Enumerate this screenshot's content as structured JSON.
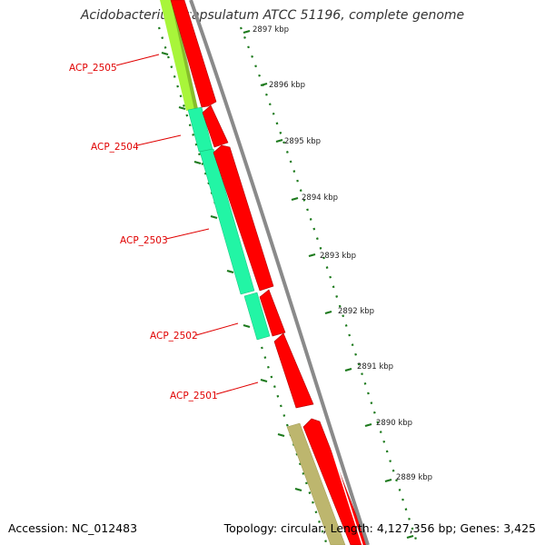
{
  "map": {
    "title": "Acidobacterium capsulatum ATCC 51196, complete genome",
    "accession": "Accession: NC_012483",
    "summary": "Topology: circular; Length: 4,127,356 bp; Genes: 3,425",
    "colors": {
      "backbone": "#8a8a8a",
      "orf": "#ff0000",
      "gene_green": "#22f5a5",
      "gene_lime": "#a8f53a",
      "gene_tan": "#bdb66e",
      "label": "#e00000",
      "ruler": "#1d7a1d"
    },
    "ruler_ticks": [
      {
        "label": "2897 kbp"
      },
      {
        "label": "2896 kbp"
      },
      {
        "label": "2895 kbp"
      },
      {
        "label": "2894 kbp"
      },
      {
        "label": "2893 kbp"
      },
      {
        "label": "2892 kbp"
      },
      {
        "label": "2891 kbp"
      },
      {
        "label": "2890 kbp"
      },
      {
        "label": "2889 kbp"
      }
    ],
    "gene_labels": [
      {
        "label": "ACP_2505"
      },
      {
        "label": "ACP_2504"
      },
      {
        "label": "ACP_2503"
      },
      {
        "label": "ACP_2502"
      },
      {
        "label": "ACP_2501"
      }
    ]
  }
}
